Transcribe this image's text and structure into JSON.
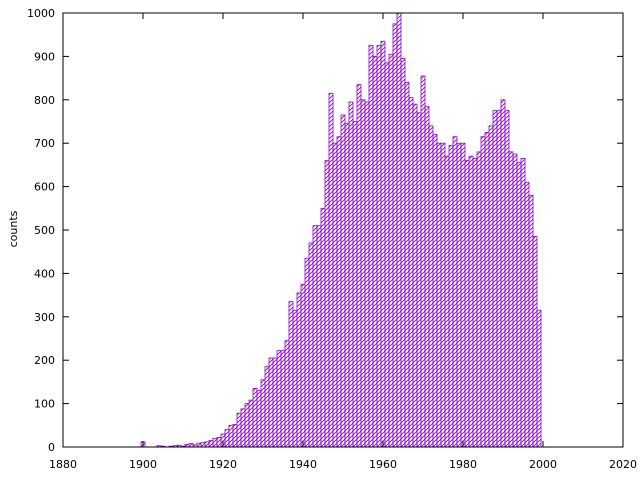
{
  "chart_data": {
    "type": "bar",
    "title": "",
    "xlabel": "",
    "ylabel": "counts",
    "xlim": [
      1880,
      2020
    ],
    "ylim": [
      0,
      1000
    ],
    "x_ticks": [
      1880,
      1900,
      1920,
      1940,
      1960,
      1980,
      2000,
      2020
    ],
    "y_ticks": [
      0,
      100,
      200,
      300,
      400,
      500,
      600,
      700,
      800,
      900,
      1000
    ],
    "bin_width": 1,
    "grid": false,
    "legend": "none",
    "series": [
      {
        "color": "#9400d3",
        "fill": "hatched",
        "x": [
          1900,
          1904,
          1905,
          1907,
          1908,
          1909,
          1910,
          1911,
          1912,
          1913,
          1914,
          1915,
          1916,
          1917,
          1918,
          1919,
          1920,
          1921,
          1922,
          1923,
          1924,
          1925,
          1926,
          1927,
          1928,
          1929,
          1930,
          1931,
          1932,
          1933,
          1934,
          1935,
          1936,
          1937,
          1938,
          1939,
          1940,
          1941,
          1942,
          1943,
          1944,
          1945,
          1946,
          1947,
          1948,
          1949,
          1950,
          1951,
          1952,
          1953,
          1954,
          1955,
          1956,
          1957,
          1958,
          1959,
          1960,
          1961,
          1962,
          1963,
          1964,
          1965,
          1966,
          1967,
          1968,
          1969,
          1970,
          1971,
          1972,
          1973,
          1974,
          1975,
          1976,
          1977,
          1978,
          1979,
          1980,
          1981,
          1982,
          1983,
          1984,
          1985,
          1986,
          1987,
          1988,
          1989,
          1990,
          1991,
          1992,
          1993,
          1994,
          1995,
          1996,
          1997,
          1998,
          1999
        ],
        "values": [
          12,
          3,
          2,
          2,
          3,
          4,
          2,
          6,
          8,
          5,
          9,
          10,
          12,
          15,
          20,
          22,
          30,
          40,
          50,
          52,
          78,
          88,
          100,
          108,
          135,
          130,
          155,
          185,
          205,
          205,
          222,
          222,
          245,
          335,
          315,
          355,
          375,
          435,
          470,
          510,
          510,
          550,
          660,
          815,
          700,
          715,
          765,
          745,
          795,
          750,
          835,
          800,
          795,
          925,
          900,
          925,
          935,
          885,
          905,
          975,
          1000,
          895,
          840,
          805,
          790,
          770,
          855,
          785,
          740,
          720,
          700,
          700,
          670,
          695,
          715,
          700,
          700,
          660,
          670,
          665,
          680,
          715,
          725,
          740,
          775,
          775,
          800,
          775,
          680,
          675,
          655,
          665,
          610,
          580,
          485,
          315
        ]
      }
    ]
  }
}
